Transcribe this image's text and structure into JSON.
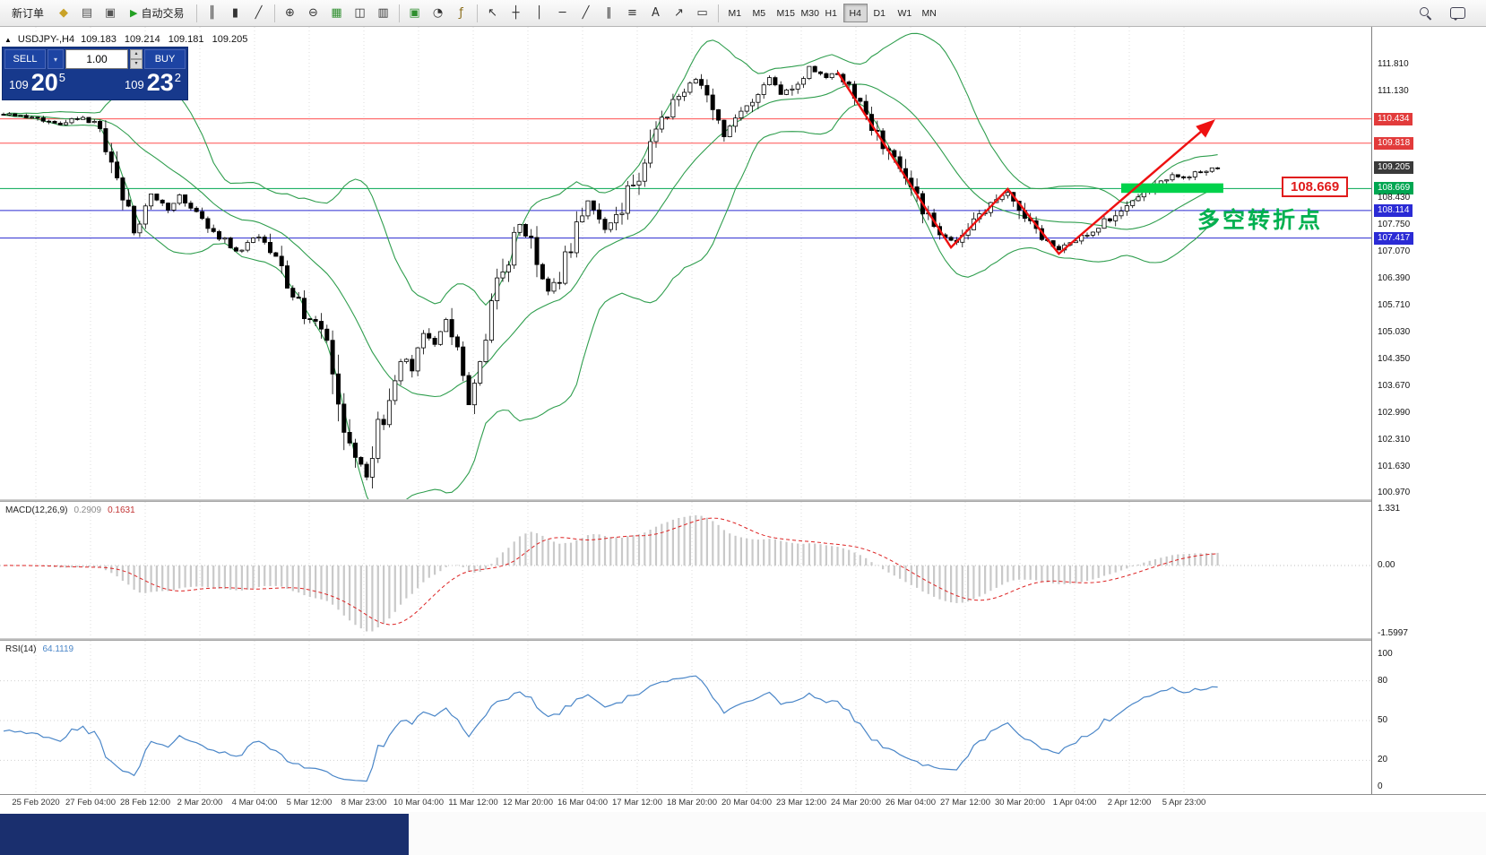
{
  "colors": {
    "accent_navy": "#17398c",
    "bollinger": "#2f9e4e",
    "hline_red": "#ff5050",
    "hline_blue": "#2a2ad0",
    "hline_green": "#00a651",
    "highlight_green": "#00d24b",
    "trend_red": "#ee1111",
    "callout_red": "#e01b1b",
    "annotation_green": "#00b050",
    "macd_hist": "#c9c9c9",
    "macd_signal": "#dd2222",
    "rsi_line": "#4a86c8"
  },
  "toolbar": {
    "new_order_label": "新订单",
    "auto_trading": {
      "label": "自动交易",
      "icon_glyph": "▶"
    },
    "timeframes": [
      "M1",
      "M5",
      "M15",
      "M30",
      "H1",
      "H4",
      "D1",
      "W1",
      "MN"
    ],
    "active_timeframe": "H4",
    "icon_groups": {
      "file": [
        {
          "name": "styles-icon",
          "glyph": "◆",
          "color": "#c9a227"
        },
        {
          "name": "print-icon",
          "glyph": "▤",
          "color": "#555555"
        },
        {
          "name": "print-preview-icon",
          "glyph": "▣",
          "color": "#555555"
        }
      ],
      "chart_types": [
        {
          "name": "bar-chart-icon",
          "glyph": "║",
          "color": "#333333"
        },
        {
          "name": "candlestick-icon",
          "glyph": "▮",
          "color": "#333333"
        },
        {
          "name": "line-chart-icon",
          "glyph": "╱",
          "color": "#333333"
        }
      ],
      "zoom": [
        {
          "name": "zoom-in-icon",
          "glyph": "⊕",
          "color": "#333333"
        },
        {
          "name": "zoom-out-icon",
          "glyph": "⊖",
          "color": "#333333"
        }
      ],
      "windows": [
        {
          "name": "tile-windows-icon",
          "glyph": "▦",
          "color": "#2f8f2f"
        },
        {
          "name": "cascade-windows-icon",
          "glyph": "◫",
          "color": "#333333"
        },
        {
          "name": "arrange-windows-icon",
          "glyph": "▥",
          "color": "#333333"
        }
      ],
      "objects": [
        {
          "name": "new-chart-icon",
          "glyph": "▣",
          "color": "#2f8f2f"
        },
        {
          "name": "period-clock-icon",
          "glyph": "◔",
          "color": "#333333"
        },
        {
          "name": "indicators-icon",
          "glyph": "ƒ",
          "color": "#8a6d1a"
        }
      ],
      "drawing": [
        {
          "name": "cursor-icon",
          "glyph": "↖",
          "color": "#333333"
        },
        {
          "name": "crosshair-icon",
          "glyph": "┼",
          "color": "#333333"
        },
        {
          "name": "vertical-line-icon",
          "glyph": "│",
          "color": "#333333"
        },
        {
          "name": "horizontal-line-icon",
          "glyph": "─",
          "color": "#333333"
        },
        {
          "name": "trendline-icon",
          "glyph": "╱",
          "color": "#333333"
        },
        {
          "name": "channel-icon",
          "glyph": "∥",
          "color": "#333333"
        },
        {
          "name": "fibonacci-icon",
          "glyph": "≡",
          "color": "#333333"
        },
        {
          "name": "text-tool-icon",
          "glyph": "A",
          "color": "#333333"
        },
        {
          "name": "arrow-tool-icon",
          "glyph": "↗",
          "color": "#333333"
        },
        {
          "name": "shapes-icon",
          "glyph": "▭",
          "color": "#333333"
        }
      ]
    }
  },
  "chart": {
    "collapse_icon": "▲",
    "title": "USDJPY-,H4"
  },
  "trade_panel": {
    "sell_label": "SELL",
    "buy_label": "BUY",
    "volume": "1.00",
    "dropdown_glyph": "▾",
    "spin_up_glyph": "▴",
    "spin_down_glyph": "▾",
    "sell_price": {
      "figure": "109",
      "pips": "20",
      "point": "5"
    },
    "buy_price": {
      "figure": "109",
      "pips": "23",
      "point": "2"
    }
  },
  "chart_data": {
    "type": "candlestick",
    "symbol": "USDJPY",
    "period": "H4",
    "ohlc": {
      "open": "109.183",
      "high": "109.214",
      "low": "109.181",
      "close": "109.205"
    },
    "price_range": {
      "min": 100.81,
      "max": 112.76
    },
    "candles": {
      "count": 215,
      "seed": 5,
      "anchors": [
        [
          0,
          110.55
        ],
        [
          6,
          110.42
        ],
        [
          10,
          110.3
        ],
        [
          14,
          110.48
        ],
        [
          17,
          110.2
        ],
        [
          19,
          109.45
        ],
        [
          21,
          108.55
        ],
        [
          23,
          107.55
        ],
        [
          26,
          108.45
        ],
        [
          29,
          108.15
        ],
        [
          31,
          108.5
        ],
        [
          34,
          108.05
        ],
        [
          37,
          107.6
        ],
        [
          41,
          107.05
        ],
        [
          45,
          107.5
        ],
        [
          48,
          106.9
        ],
        [
          50,
          106.3
        ],
        [
          53,
          105.5
        ],
        [
          56,
          105.15
        ],
        [
          58,
          104.3
        ],
        [
          60,
          102.9
        ],
        [
          62,
          101.8
        ],
        [
          64,
          101.45
        ],
        [
          66,
          102.6
        ],
        [
          68,
          103.2
        ],
        [
          70,
          104.4
        ],
        [
          72,
          104.1
        ],
        [
          74,
          105.0
        ],
        [
          76,
          104.75
        ],
        [
          78,
          105.3
        ],
        [
          80,
          104.5
        ],
        [
          82,
          103.2
        ],
        [
          84,
          104.3
        ],
        [
          86,
          105.8
        ],
        [
          88,
          106.55
        ],
        [
          91,
          107.8
        ],
        [
          93,
          107.25
        ],
        [
          96,
          106.05
        ],
        [
          98,
          106.45
        ],
        [
          101,
          107.7
        ],
        [
          103,
          108.35
        ],
        [
          106,
          107.65
        ],
        [
          108,
          107.85
        ],
        [
          110,
          108.55
        ],
        [
          113,
          109.3
        ],
        [
          115,
          110.05
        ],
        [
          118,
          110.85
        ],
        [
          120,
          111.2
        ],
        [
          122,
          111.45
        ],
        [
          125,
          110.85
        ],
        [
          127,
          110.05
        ],
        [
          130,
          110.6
        ],
        [
          133,
          111.15
        ],
        [
          135,
          111.45
        ],
        [
          137,
          111.05
        ],
        [
          140,
          111.35
        ],
        [
          142,
          111.7
        ],
        [
          145,
          111.5
        ],
        [
          147,
          111.6
        ],
        [
          149,
          111.15
        ],
        [
          152,
          110.55
        ],
        [
          154,
          110.05
        ],
        [
          156,
          109.55
        ],
        [
          159,
          108.95
        ],
        [
          161,
          108.4
        ],
        [
          163,
          107.9
        ],
        [
          166,
          107.45
        ],
        [
          168,
          107.3
        ],
        [
          170,
          107.75
        ],
        [
          172,
          108.05
        ],
        [
          174,
          108.25
        ],
        [
          177,
          108.6
        ],
        [
          179,
          108.05
        ],
        [
          182,
          107.6
        ],
        [
          184,
          107.35
        ],
        [
          186,
          107.1
        ],
        [
          189,
          107.4
        ],
        [
          192,
          107.65
        ],
        [
          195,
          107.9
        ],
        [
          198,
          108.25
        ],
        [
          201,
          108.55
        ],
        [
          204,
          108.85
        ],
        [
          206,
          109.05
        ],
        [
          208,
          108.95
        ],
        [
          211,
          109.1
        ],
        [
          214,
          109.2
        ]
      ]
    },
    "bollinger": {
      "period": 20,
      "deviation": 2
    },
    "hlines": [
      {
        "price": 110.434,
        "color_key": "hline_red"
      },
      {
        "price": 109.818,
        "color_key": "hline_red"
      },
      {
        "price": 108.669,
        "color_key": "hline_green"
      },
      {
        "price": 108.114,
        "color_key": "hline_blue"
      },
      {
        "price": 107.417,
        "color_key": "hline_blue"
      }
    ],
    "current_price": 109.205,
    "highlight_zone": {
      "bar_from": 197,
      "bar_to": 215,
      "price_from": 108.56,
      "price_to": 108.8
    },
    "trend_line": [
      [
        147,
        111.62
      ],
      [
        167,
        107.18
      ],
      [
        177,
        108.66
      ],
      [
        186,
        107.02
      ],
      [
        213,
        110.35
      ]
    ],
    "annotation": "多空转折点",
    "price_callout": "108.669",
    "price_axis_labels": [
      {
        "text": "111.810",
        "price": 111.81,
        "style": "plain"
      },
      {
        "text": "111.130",
        "price": 111.13,
        "style": "plain"
      },
      {
        "text": "110.434",
        "price": 110.434,
        "style": "red"
      },
      {
        "text": "109.818",
        "price": 109.818,
        "style": "red"
      },
      {
        "text": "109.205",
        "price": 109.205,
        "style": "current"
      },
      {
        "text": "108.669",
        "price": 108.669,
        "style": "green"
      },
      {
        "text": "108.430",
        "price": 108.43,
        "style": "plain"
      },
      {
        "text": "108.114",
        "price": 108.114,
        "style": "blue"
      },
      {
        "text": "107.750",
        "price": 107.75,
        "style": "plain"
      },
      {
        "text": "107.417",
        "price": 107.417,
        "style": "blue"
      },
      {
        "text": "107.070",
        "price": 107.07,
        "style": "plain"
      },
      {
        "text": "106.390",
        "price": 106.39,
        "style": "plain"
      },
      {
        "text": "105.710",
        "price": 105.71,
        "style": "plain"
      },
      {
        "text": "105.030",
        "price": 105.03,
        "style": "plain"
      },
      {
        "text": "104.350",
        "price": 104.35,
        "style": "plain"
      },
      {
        "text": "103.670",
        "price": 103.67,
        "style": "plain"
      },
      {
        "text": "102.990",
        "price": 102.99,
        "style": "plain"
      },
      {
        "text": "102.310",
        "price": 102.31,
        "style": "plain"
      },
      {
        "text": "101.630",
        "price": 101.63,
        "style": "plain"
      },
      {
        "text": "100.970",
        "price": 100.97,
        "style": "plain"
      }
    ],
    "macd": {
      "label": "MACD(12,26,9)",
      "value_main": "0.2909",
      "value_signal": "0.1631",
      "fast": 12,
      "slow": 26,
      "signal": 9,
      "axis_labels": [
        {
          "v": 1.331,
          "text": "1.331"
        },
        {
          "v": 0,
          "text": "0.00"
        },
        {
          "v": -1.5997,
          "text": "-1.5997"
        }
      ]
    },
    "rsi": {
      "label": "RSI(14)",
      "value": "64.1119",
      "period": 14,
      "levels": [
        80,
        50,
        20
      ],
      "axis_labels": [
        {
          "v": 100,
          "text": "100"
        },
        {
          "v": 80,
          "text": "80"
        },
        {
          "v": 50,
          "text": "50"
        },
        {
          "v": 20,
          "text": "20"
        },
        {
          "v": 0,
          "text": "0"
        }
      ]
    },
    "time_labels": [
      "25 Feb 2020",
      "27 Feb 04:00",
      "28 Feb 12:00",
      "2 Mar 20:00",
      "4 Mar 04:00",
      "5 Mar 12:00",
      "8 Mar 23:00",
      "10 Mar 04:00",
      "11 Mar 12:00",
      "12 Mar 20:00",
      "16 Mar 04:00",
      "17 Mar 12:00",
      "18 Mar 20:00",
      "20 Mar 04:00",
      "23 Mar 12:00",
      "24 Mar 20:00",
      "26 Mar 04:00",
      "27 Mar 12:00",
      "30 Mar 20:00",
      "1 Apr 04:00",
      "2 Apr 12:00",
      "5 Apr 23:00"
    ]
  }
}
